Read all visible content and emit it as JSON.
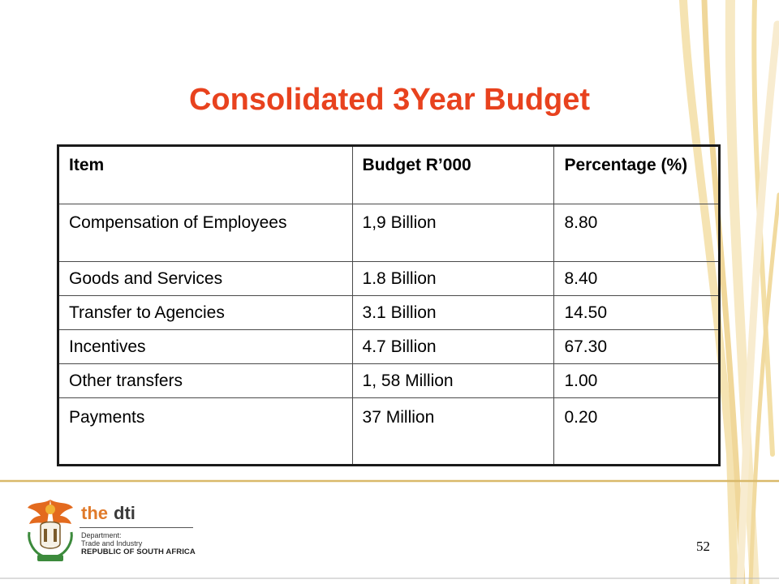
{
  "slide": {
    "title": "Consolidated 3Year Budget",
    "number": "52"
  },
  "table": {
    "headers": [
      "Item",
      "Budget R’000",
      "Percentage (%)"
    ],
    "rows": [
      {
        "item": "Compensation of Employees",
        "budget": "1,9 Billion",
        "percentage": "8.80"
      },
      {
        "item": "Goods and Services",
        "budget": "1.8 Billion",
        "percentage": "8.40"
      },
      {
        "item": "Transfer to Agencies",
        "budget": "3.1 Billion",
        "percentage": "14.50"
      },
      {
        "item": "Incentives",
        "budget": "4.7 Billion",
        "percentage": "67.30"
      },
      {
        "item": "Other transfers",
        "budget": "1, 58 Million",
        "percentage": "1.00"
      },
      {
        "item": "Payments",
        "budget": "37 Million",
        "percentage": "0.20"
      }
    ]
  },
  "logo": {
    "brand_prefix": "the",
    "brand_name": "dti",
    "line1": "Department:",
    "line2": "Trade and Industry",
    "line3": "REPUBLIC OF SOUTH AFRICA"
  },
  "colors": {
    "title": "#e8421e",
    "decor_stripes": "#f3dfa6",
    "divider": "#d9b96a",
    "brand_orange": "#e07a2a"
  }
}
